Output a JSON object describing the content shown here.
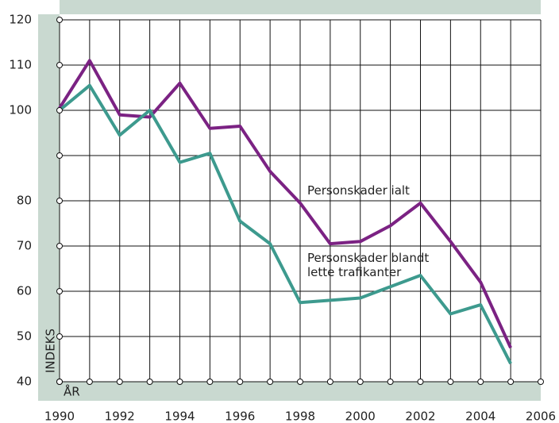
{
  "chart_data": {
    "type": "line",
    "x_label": "ÅR",
    "y_label": "INDEKS",
    "x": [
      1990,
      1991,
      1992,
      1993,
      1994,
      1995,
      1996,
      1997,
      1998,
      1999,
      2000,
      2001,
      2002,
      2003,
      2004,
      2005
    ],
    "series": [
      {
        "name": [
          "Personskader ialt"
        ],
        "color": "#7b2283",
        "values": [
          100.5,
          111,
          99,
          98.5,
          106,
          96,
          96.5,
          86.5,
          79.5,
          70.5,
          71,
          74.5,
          79.5,
          71,
          62,
          47.5
        ]
      },
      {
        "name": [
          "Personskader blandt",
          "lette trafikanter"
        ],
        "color": "#3d9a8e",
        "values": [
          100,
          105.5,
          94.5,
          100,
          88.5,
          90.5,
          75.5,
          70.5,
          57.5,
          58,
          58.5,
          61,
          63.5,
          55,
          57,
          44
        ]
      }
    ],
    "xlim": [
      1990,
      2006
    ],
    "xticks": [
      1990,
      1992,
      1994,
      1996,
      1998,
      2000,
      2002,
      2004,
      2006
    ],
    "xgrid": [
      1990,
      1991,
      1992,
      1993,
      1994,
      1995,
      1996,
      1997,
      1998,
      1999,
      2000,
      2001,
      2002,
      2003,
      2004,
      2005,
      2006
    ],
    "ylim": [
      40,
      120
    ],
    "yticks": [
      40,
      50,
      60,
      70,
      80,
      {
        "value": 90,
        "label": null
      },
      100,
      110,
      120
    ],
    "grid": true
  }
}
